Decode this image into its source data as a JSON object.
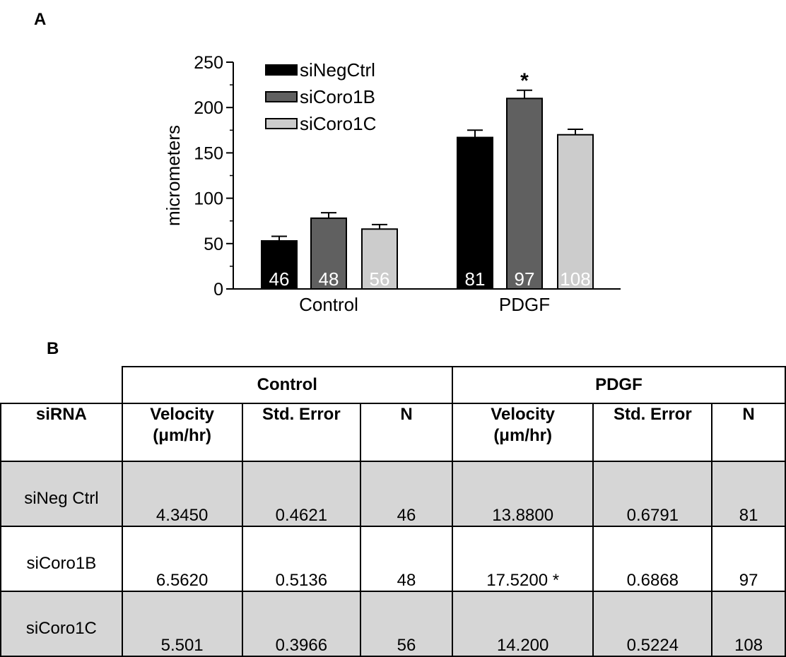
{
  "panel_a_label": "A",
  "panel_b_label": "B",
  "chart_data": {
    "type": "bar",
    "categories": [
      "Control",
      "PDGF"
    ],
    "series": [
      {
        "name": "siNegCtrl",
        "values": [
          53,
          167
        ],
        "errors": [
          5,
          8
        ],
        "n": [
          "46",
          "81"
        ],
        "color": "#000000",
        "n_color": "#ffffff"
      },
      {
        "name": "siCoro1B",
        "values": [
          78,
          210
        ],
        "errors": [
          6,
          9
        ],
        "n": [
          "48",
          "97"
        ],
        "color": "#606060",
        "n_color": "#ffffff"
      },
      {
        "name": "siCoro1C",
        "values": [
          66,
          170
        ],
        "errors": [
          5,
          6
        ],
        "n": [
          "56",
          "108"
        ],
        "color": "#cccccc",
        "n_color": "#ffffff"
      }
    ],
    "ylabel": "micrometers",
    "xlabel": "",
    "ylim": [
      0,
      250
    ],
    "yticks": [
      0,
      50,
      100,
      150,
      200,
      250
    ],
    "annotations": [
      {
        "category": "PDGF",
        "series": "siCoro1B",
        "text": "*"
      }
    ],
    "legend_position": "top-left",
    "grid": false
  },
  "table": {
    "groups": [
      "Control",
      "PDGF"
    ],
    "headers": {
      "sirna": "siRNA",
      "velocity_line1": "Velocity",
      "velocity_line2": "(μm/hr)",
      "std_error": "Std. Error",
      "n": "N"
    },
    "rows": [
      {
        "name": "siNeg Ctrl",
        "c_vel": "4.3450",
        "c_se": "0.4621",
        "c_n": "46",
        "p_vel": "13.8800",
        "p_se": "0.6791",
        "p_n": "81"
      },
      {
        "name": "siCoro1B",
        "c_vel": "6.5620",
        "c_se": "0.5136",
        "c_n": "48",
        "p_vel": "17.5200 *",
        "p_se": "0.6868",
        "p_n": "97"
      },
      {
        "name": "siCoro1C",
        "c_vel": "5.501",
        "c_se": "0.3966",
        "c_n": "56",
        "p_vel": "14.200",
        "p_se": "0.5224",
        "p_n": "108"
      }
    ]
  }
}
